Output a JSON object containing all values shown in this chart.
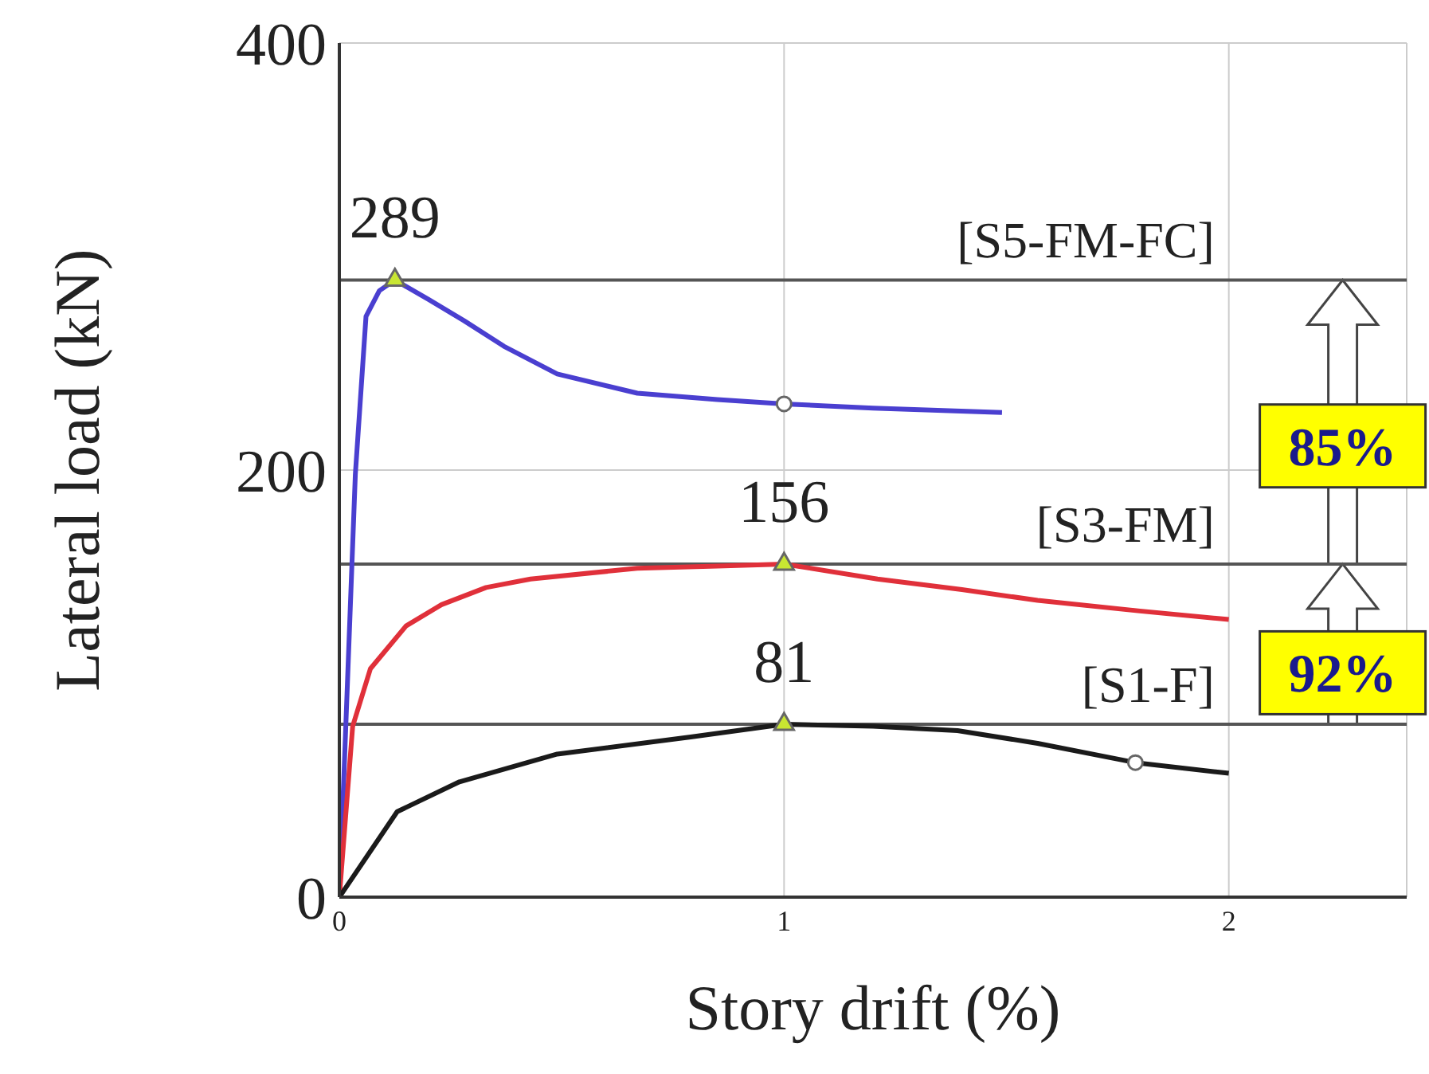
{
  "chart_data": {
    "type": "line",
    "xlabel": "Story drift (%)",
    "ylabel": "Lateral load (kN)",
    "xlim": [
      0,
      2.4
    ],
    "xticks": [
      0,
      1,
      2
    ],
    "ylim": [
      0,
      400
    ],
    "yticks": [
      0,
      200,
      400
    ],
    "grid": true,
    "line_style": "solid",
    "series": [
      {
        "color": "#4a3fd0",
        "x": [
          0,
          0.036,
          0.06,
          0.09,
          0.125,
          0.2,
          0.28,
          0.37,
          0.49,
          0.67,
          0.85,
          1.0,
          1.2,
          1.49
        ],
        "values": [
          0,
          198,
          272,
          284,
          289,
          280,
          270,
          258,
          245,
          236,
          233,
          231,
          229,
          227
        ]
      },
      {
        "color": "#e0303a",
        "x": [
          0,
          0.03,
          0.07,
          0.15,
          0.23,
          0.33,
          0.43,
          0.67,
          0.85,
          1.0,
          1.21,
          1.4,
          1.57,
          1.8,
          2.0
        ],
        "values": [
          0,
          80,
          107,
          127,
          137,
          145,
          149,
          154,
          155,
          156,
          149,
          144,
          139,
          134,
          130
        ]
      },
      {
        "color": "#1a1a1a",
        "x": [
          0,
          0.13,
          0.27,
          0.49,
          0.79,
          1.0,
          1.2,
          1.39,
          1.57,
          1.79,
          2.0
        ],
        "values": [
          0,
          40,
          54,
          67,
          75,
          81,
          80,
          78,
          72,
          63,
          58
        ]
      },
      {
        "type": "scatter",
        "marker": "triangle",
        "color": "#c8e632",
        "x": [
          0.125,
          1.0,
          1.0
        ],
        "values": [
          289,
          156,
          81
        ],
        "value_labels": [
          "289",
          "156",
          "81"
        ]
      },
      {
        "type": "scatter",
        "marker": "circle",
        "color": "#ffffff",
        "x": [
          1.0,
          1.79
        ],
        "values": [
          231,
          63
        ]
      }
    ],
    "ref_lines": [
      {
        "axis": "y",
        "value": 289,
        "label": "[S5-FM-FC]",
        "color": "#555555"
      },
      {
        "axis": "y",
        "value": 156,
        "label": "[S3-FM]",
        "color": "#555555"
      },
      {
        "axis": "y",
        "value": 81,
        "label": "[S1-F]",
        "color": "#555555"
      }
    ],
    "annotations": [
      "85%",
      "92%"
    ]
  }
}
